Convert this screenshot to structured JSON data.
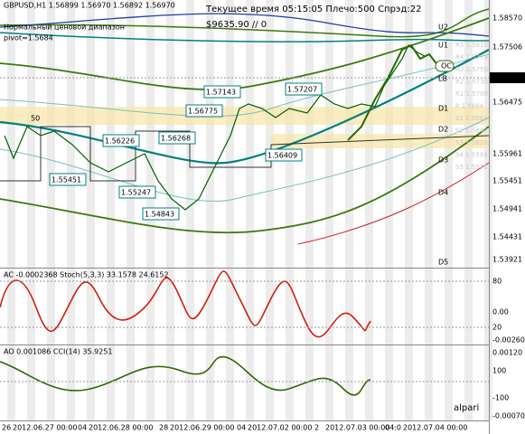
{
  "header": {
    "symbol_line": "GBPUSD,H1  1.56899 1.56970 1.56892 1.56970",
    "indicator_name": "Нормальный ценовой диапазон",
    "pivot": "pivot=1.5684",
    "status": "Текущее время 05:15:05 Плечо:500 Спрэд:22",
    "balance": "$9635.90   // 0"
  },
  "price_boxes": [
    "1.57143",
    "1.57207",
    "1.56775",
    "1.56268",
    "1.56226",
    "1.56409",
    "1.55451",
    "1.55247",
    "1.54843",
    "50"
  ],
  "levels": [
    "U2",
    "U1",
    "OC",
    "LB",
    "D1",
    "D2",
    "D3",
    "D4",
    "D5"
  ],
  "pivot_levels": [
    "R5 1.5810",
    "R4 1.5779",
    "R3 1.5750",
    "R2 1.5730",
    "R1 1.5708",
    "P 1.5684",
    "S1 1.5661",
    "S2 1.5640",
    "S3 1.5620",
    "S4 1.5593",
    "S5 1.5570"
  ],
  "price_axis": [
    "1.58570",
    "1.57506",
    "1.56970",
    "1.56475",
    "1.55961",
    "1.55451",
    "1.54941",
    "1.54431",
    "1.53921"
  ],
  "ac_panel": {
    "title": "AC -0.0002368  Stoch(5,3,3) 33.1578 24.6152",
    "axis": [
      "80",
      "0.00",
      "20",
      "-0.00260"
    ]
  },
  "ao_panel": {
    "title": "AO 0.001086  CCI(14) 35.9251",
    "axis": [
      "0.00120",
      "100",
      "-100",
      "-0.00070"
    ]
  },
  "time_axis": [
    "26",
    "2012.06.27 00:00",
    "04",
    "2012.06.28 00:00",
    "28",
    "2012.06.29 00:00",
    "04",
    "2012.07.02 00:00",
    "2",
    "2012.07.03 00:00",
    "04:0",
    "2012.07.04 00:00"
  ],
  "logo": "alpari"
}
